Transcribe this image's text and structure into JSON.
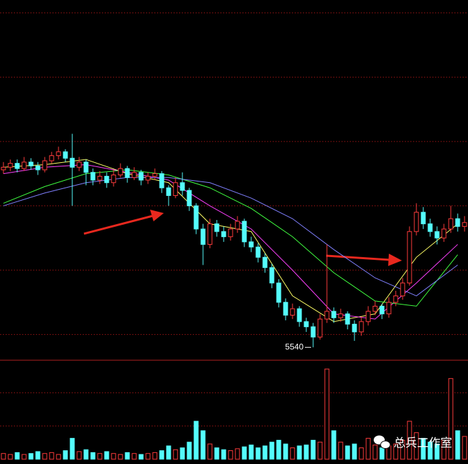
{
  "chart_data": [
    {
      "type": "candlestick",
      "open": [
        5678,
        5680,
        5683,
        5679,
        5684,
        5681,
        5678,
        5685,
        5689,
        5692,
        5687,
        5680,
        5684,
        5676,
        5670,
        5673,
        5668,
        5674,
        5679,
        5672,
        5676,
        5670,
        5673,
        5675,
        5664,
        5658,
        5668,
        5662,
        5650,
        5632,
        5620,
        5636,
        5630,
        5626,
        5632,
        5638,
        5622,
        5618,
        5610,
        5602,
        5590,
        5575,
        5565,
        5570,
        5560,
        5556,
        5548,
        5562,
        5568,
        5563,
        5566,
        5558,
        5552,
        5560,
        5568,
        5572,
        5566,
        5575,
        5580,
        5590,
        5630,
        5645,
        5636,
        5630,
        5625,
        5632,
        5640,
        5634
      ],
      "high": [
        5684,
        5686,
        5686,
        5688,
        5687,
        5684,
        5688,
        5692,
        5696,
        5694,
        5706,
        5688,
        5686,
        5679,
        5677,
        5676,
        5678,
        5683,
        5681,
        5680,
        5678,
        5676,
        5679,
        5677,
        5666,
        5672,
        5676,
        5664,
        5652,
        5636,
        5640,
        5639,
        5634,
        5636,
        5642,
        5640,
        5626,
        5621,
        5613,
        5605,
        5593,
        5578,
        5574,
        5572,
        5563,
        5559,
        5566,
        5620,
        5571,
        5570,
        5568,
        5561,
        5564,
        5572,
        5576,
        5574,
        5579,
        5584,
        5594,
        5634,
        5652,
        5649,
        5640,
        5634,
        5636,
        5650,
        5644,
        5642
      ],
      "low": [
        5675,
        5677,
        5676,
        5677,
        5678,
        5674,
        5676,
        5683,
        5686,
        5684,
        5650,
        5677,
        5666,
        5666,
        5667,
        5664,
        5665,
        5672,
        5668,
        5670,
        5666,
        5667,
        5670,
        5660,
        5650,
        5656,
        5658,
        5646,
        5628,
        5604,
        5617,
        5626,
        5622,
        5623,
        5629,
        5618,
        5614,
        5606,
        5598,
        5586,
        5571,
        5561,
        5562,
        5556,
        5552,
        5540,
        5546,
        5559,
        5559,
        5560,
        5554,
        5545,
        5549,
        5557,
        5565,
        5562,
        5563,
        5572,
        5577,
        5588,
        5627,
        5632,
        5626,
        5620,
        5622,
        5629,
        5630,
        5630
      ],
      "close": [
        5680,
        5683,
        5679,
        5684,
        5681,
        5678,
        5685,
        5689,
        5692,
        5687,
        5680,
        5684,
        5676,
        5670,
        5673,
        5668,
        5674,
        5679,
        5672,
        5676,
        5670,
        5673,
        5675,
        5664,
        5658,
        5668,
        5662,
        5650,
        5632,
        5620,
        5636,
        5630,
        5626,
        5632,
        5638,
        5622,
        5618,
        5610,
        5602,
        5590,
        5575,
        5565,
        5570,
        5560,
        5556,
        5548,
        5562,
        5568,
        5563,
        5566,
        5558,
        5552,
        5560,
        5568,
        5572,
        5566,
        5575,
        5580,
        5590,
        5630,
        5645,
        5636,
        5630,
        5625,
        5632,
        5640,
        5634,
        5637
      ],
      "up_color": "#ff3c3c",
      "down_color": "#54fcfc",
      "ylim": [
        5530,
        5810
      ],
      "yticks": [
        5550,
        5600,
        5650,
        5700,
        5750,
        5800
      ],
      "grid": true,
      "series": [
        {
          "color": "#ffff66",
          "x": [
            0,
            6,
            12,
            18,
            24,
            30,
            36,
            42,
            48,
            54,
            60,
            66
          ],
          "values": [
            5680,
            5682,
            5686,
            5675,
            5668,
            5636,
            5630,
            5580,
            5560,
            5566,
            5610,
            5636
          ]
        },
        {
          "color": "#ff40ff",
          "x": [
            0,
            6,
            12,
            18,
            24,
            30,
            36,
            42,
            48,
            54,
            60,
            66
          ],
          "values": [
            5675,
            5680,
            5682,
            5676,
            5670,
            5650,
            5632,
            5600,
            5566,
            5562,
            5590,
            5620
          ]
        },
        {
          "color": "#40ff40",
          "x": [
            0,
            6,
            12,
            18,
            24,
            30,
            36,
            42,
            48,
            54,
            60,
            66
          ],
          "values": [
            5652,
            5665,
            5675,
            5678,
            5674,
            5664,
            5648,
            5626,
            5598,
            5576,
            5572,
            5612
          ]
        },
        {
          "color": "#8080ff",
          "x": [
            0,
            6,
            12,
            18,
            24,
            30,
            36,
            42,
            48,
            54,
            60,
            66
          ],
          "values": [
            5650,
            5660,
            5668,
            5672,
            5672,
            5668,
            5656,
            5640,
            5616,
            5594,
            5580,
            5604
          ]
        }
      ],
      "annotation": 5540
    },
    {
      "type": "bar",
      "values": [
        6,
        5,
        7,
        5,
        6,
        8,
        6,
        7,
        5,
        9,
        22,
        8,
        10,
        7,
        6,
        8,
        6,
        5,
        7,
        6,
        5,
        6,
        7,
        9,
        14,
        10,
        12,
        18,
        40,
        30,
        16,
        12,
        10,
        9,
        11,
        13,
        15,
        12,
        14,
        18,
        20,
        16,
        12,
        14,
        15,
        20,
        18,
        95,
        30,
        18,
        14,
        16,
        12,
        22,
        15,
        12,
        14,
        16,
        20,
        40,
        28,
        22,
        18,
        16,
        20,
        85,
        30,
        24
      ],
      "up_color": "#ff3c3c",
      "down_color": "#54fcfc",
      "ylim": [
        0,
        100
      ],
      "yticks": [
        35,
        70
      ],
      "grid": true
    }
  ],
  "watermark": "总兵工作室"
}
